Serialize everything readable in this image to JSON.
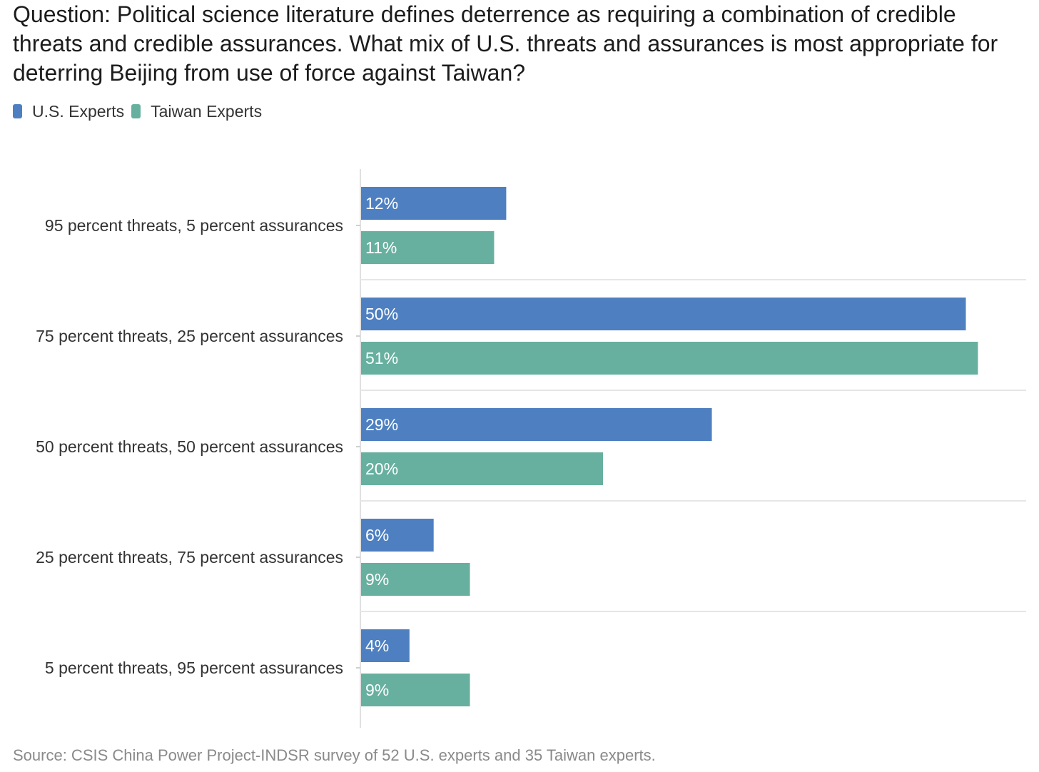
{
  "title": "Question: Political science literature defines deterrence as requiring a combination of credible threats and credible assurances. What mix of U.S. threats and assurances is most appropriate for deterring Beijing from use of force against Taiwan?",
  "source": "Source: CSIS China Power Project-INDSR survey of 52 U.S. experts and 35 Taiwan experts.",
  "legend": [
    {
      "label": "U.S. Experts",
      "color": "#4e80c1"
    },
    {
      "label": "Taiwan Experts",
      "color": "#67b0a0"
    }
  ],
  "chart_data": {
    "type": "bar",
    "orientation": "horizontal",
    "categories": [
      "95 percent threats, 5 percent assurances",
      "75 percent threats, 25 percent assurances",
      "50 percent threats, 50 percent assurances",
      "25 percent threats, 75 percent assurances",
      "5 percent threats, 95 percent assurances"
    ],
    "series": [
      {
        "name": "U.S. Experts",
        "color": "#4e80c1",
        "values": [
          12,
          50,
          29,
          6,
          4
        ]
      },
      {
        "name": "Taiwan Experts",
        "color": "#67b0a0",
        "values": [
          11,
          51,
          20,
          9,
          9
        ]
      }
    ],
    "value_suffix": "%",
    "xlim": [
      0,
      54
    ],
    "legend_position": "top-left",
    "grid": false
  }
}
